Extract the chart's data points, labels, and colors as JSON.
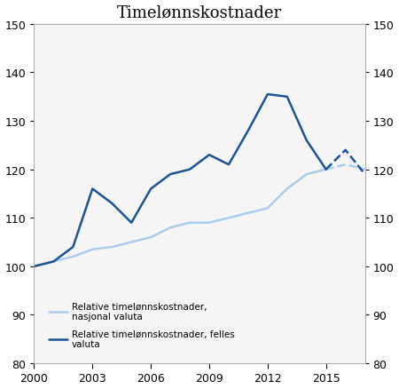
{
  "title": "Timelønnskostnader",
  "years_solid": [
    2000,
    2001,
    2002,
    2003,
    2004,
    2005,
    2006,
    2007,
    2008,
    2009,
    2010,
    2011,
    2012,
    2013,
    2014,
    2015
  ],
  "years_dashed": [
    2015,
    2016,
    2017
  ],
  "nasjonal_solid": [
    100,
    101,
    102,
    103.5,
    104,
    105,
    106,
    108,
    109,
    109,
    110,
    111,
    112,
    116,
    119,
    120
  ],
  "nasjonal_dashed": [
    120,
    121,
    120
  ],
  "felles_solid": [
    100,
    101,
    104,
    116,
    113,
    109,
    116,
    119,
    120,
    123,
    121,
    128,
    135.5,
    135,
    126,
    120
  ],
  "felles_dashed": [
    120,
    124,
    119
  ],
  "ylim": [
    80,
    150
  ],
  "yticks": [
    80,
    90,
    100,
    110,
    120,
    130,
    140,
    150
  ],
  "xlim": [
    2000,
    2017
  ],
  "xticks": [
    2000,
    2003,
    2006,
    2009,
    2012,
    2015
  ],
  "color_nasjonal": "#aaccee",
  "color_felles": "#1a5496",
  "legend_label_nasjonal": "Relative timelønnskostnader,\nnasjonal valuta",
  "legend_label_felles": "Relative timelønnskostnader, felles\nvaluta",
  "background_color": "#ffffff",
  "plot_bg_color": "#f5f5f5",
  "linewidth": 1.8,
  "figsize": [
    4.5,
    4.39
  ],
  "dpi": 100
}
